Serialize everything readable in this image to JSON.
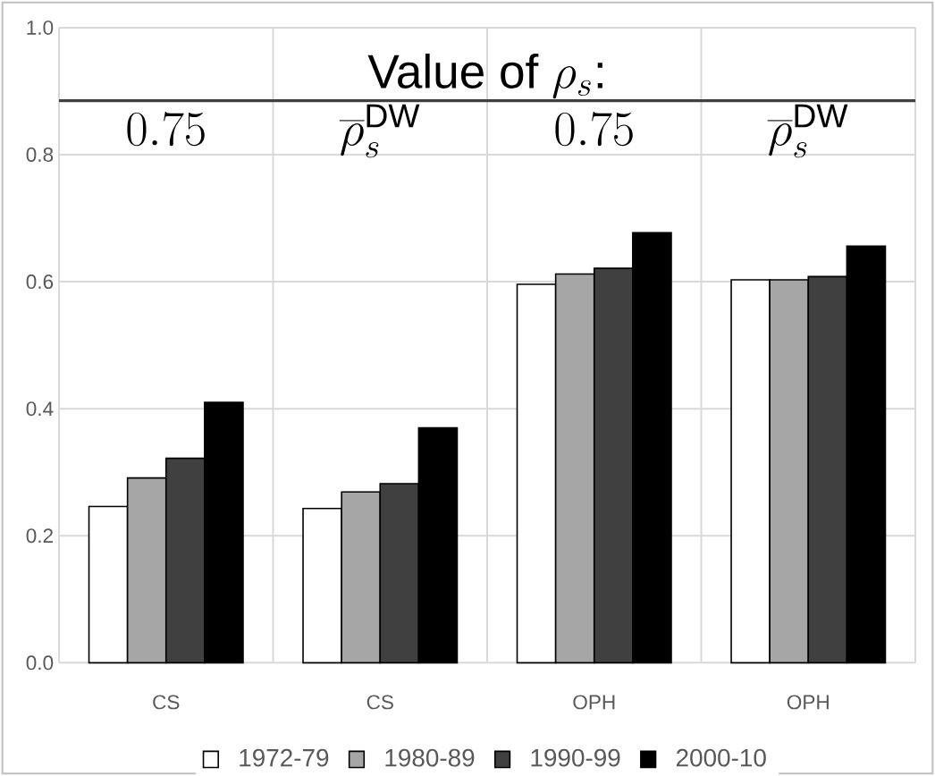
{
  "chart_data": {
    "type": "bar",
    "categories": [
      "CS",
      "CS",
      "OPH",
      "OPH"
    ],
    "series": [
      {
        "name": "1972-79",
        "color": "#ffffff",
        "values": [
          0.246,
          0.243,
          0.596,
          0.603
        ]
      },
      {
        "name": "1980-89",
        "color": "#a6a6a6",
        "values": [
          0.291,
          0.269,
          0.612,
          0.603
        ]
      },
      {
        "name": "1990-99",
        "color": "#404040",
        "values": [
          0.322,
          0.282,
          0.621,
          0.608
        ]
      },
      {
        "name": "2000-10",
        "color": "#000000",
        "values": [
          0.41,
          0.37,
          0.677,
          0.656
        ]
      }
    ],
    "ylim": [
      0,
      1
    ],
    "yticks": [
      {
        "value": 0,
        "label": "0.0"
      },
      {
        "value": 0.2,
        "label": "0.2"
      },
      {
        "value": 0.4,
        "label": "0.4"
      },
      {
        "value": 0.6,
        "label": "0.6"
      },
      {
        "value": 0.8,
        "label": "0.8"
      },
      {
        "value": 1,
        "label": "1.0"
      }
    ],
    "grid": true,
    "legend": "bottom",
    "ref_lines": [
      {
        "axis": "y",
        "value": 0.885,
        "color": "#404040",
        "line_style": "solid"
      }
    ],
    "annotations": [
      "\\mbox{Value of }\\rho_s\\mbox{:}",
      "0.75",
      "\\overline{\\rho}_s^{\\mathrm{DW}}",
      "0.75",
      "\\overline{\\rho}_s^{\\mathrm{DW}}"
    ]
  }
}
